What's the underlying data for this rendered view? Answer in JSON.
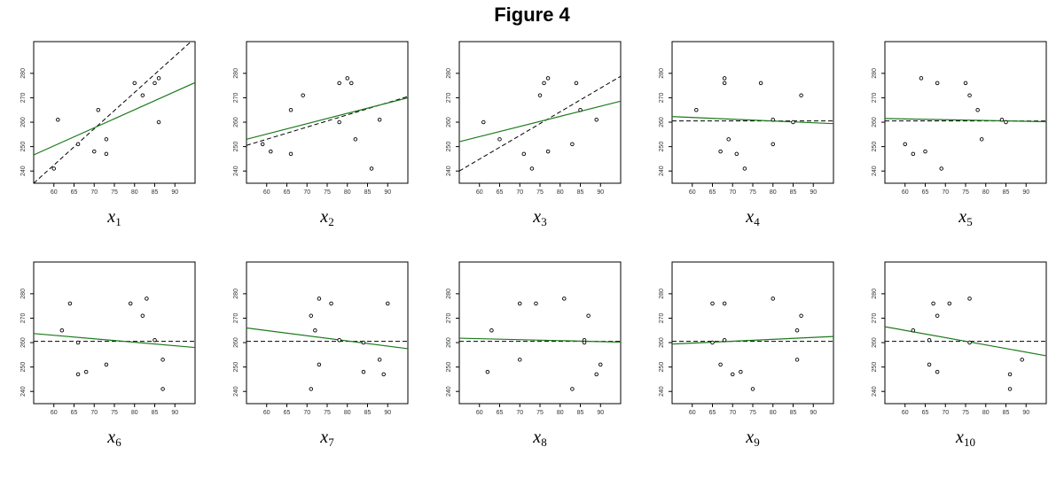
{
  "title": "Figure 4",
  "colors": {
    "fit_line": "#1a7a1a",
    "reference_line": "#000000",
    "points": "#000000"
  },
  "chart_data": [
    {
      "type": "scatter",
      "panel": "x1",
      "xlabel_var": "x",
      "xlabel_sub": "1",
      "xlim": [
        55,
        95
      ],
      "ylim": [
        235,
        293
      ],
      "xticks": [
        60,
        65,
        70,
        75,
        80,
        85,
        90
      ],
      "yticks": [
        240,
        250,
        260,
        270,
        280
      ],
      "points": [
        [
          60,
          241
        ],
        [
          61,
          261
        ],
        [
          66,
          251
        ],
        [
          70,
          248
        ],
        [
          71,
          265
        ],
        [
          73,
          253
        ],
        [
          73,
          247
        ],
        [
          80,
          276
        ],
        [
          82,
          271
        ],
        [
          85,
          276
        ],
        [
          86,
          278
        ],
        [
          86,
          260
        ]
      ],
      "fit_line": [
        [
          55,
          246.6
        ],
        [
          95,
          276.2
        ]
      ],
      "reference_line": [
        [
          55,
          235
        ],
        [
          95,
          294.5
        ]
      ]
    },
    {
      "type": "scatter",
      "panel": "x2",
      "xlabel_var": "x",
      "xlabel_sub": "2",
      "xlim": [
        55,
        95
      ],
      "ylim": [
        235,
        293
      ],
      "xticks": [
        60,
        65,
        70,
        75,
        80,
        85,
        90
      ],
      "yticks": [
        240,
        250,
        260,
        270,
        280
      ],
      "points": [
        [
          59,
          251
        ],
        [
          61,
          248
        ],
        [
          66,
          265
        ],
        [
          66,
          247
        ],
        [
          69,
          271
        ],
        [
          78,
          260
        ],
        [
          78,
          276
        ],
        [
          80,
          278
        ],
        [
          81,
          276
        ],
        [
          82,
          253
        ],
        [
          86,
          241
        ],
        [
          88,
          261
        ]
      ],
      "fit_line": [
        [
          55,
          253
        ],
        [
          95,
          270
        ]
      ],
      "reference_line": [
        [
          55,
          250.5
        ],
        [
          95,
          270.5
        ]
      ]
    },
    {
      "type": "scatter",
      "panel": "x3",
      "xlabel_var": "x",
      "xlabel_sub": "3",
      "xlim": [
        55,
        95
      ],
      "ylim": [
        235,
        293
      ],
      "xticks": [
        60,
        65,
        70,
        75,
        80,
        85,
        90
      ],
      "yticks": [
        240,
        250,
        260,
        270,
        280
      ],
      "points": [
        [
          61,
          260
        ],
        [
          65,
          253
        ],
        [
          71,
          247
        ],
        [
          73,
          241
        ],
        [
          75,
          271
        ],
        [
          76,
          276
        ],
        [
          77,
          278
        ],
        [
          77,
          248
        ],
        [
          83,
          251
        ],
        [
          84,
          276
        ],
        [
          85,
          265
        ],
        [
          89,
          261
        ]
      ],
      "fit_line": [
        [
          55,
          252
        ],
        [
          95,
          268.6
        ]
      ],
      "reference_line": [
        [
          55,
          240
        ],
        [
          95,
          278.8
        ]
      ]
    },
    {
      "type": "scatter",
      "panel": "x4",
      "xlabel_var": "x",
      "xlabel_sub": "4",
      "xlim": [
        55,
        95
      ],
      "ylim": [
        235,
        293
      ],
      "xticks": [
        60,
        65,
        70,
        75,
        80,
        85,
        90
      ],
      "yticks": [
        240,
        250,
        260,
        270,
        280
      ],
      "points": [
        [
          61,
          265
        ],
        [
          67,
          248
        ],
        [
          68,
          278
        ],
        [
          68,
          276
        ],
        [
          69,
          253
        ],
        [
          71,
          247
        ],
        [
          73,
          241
        ],
        [
          77,
          276
        ],
        [
          80,
          261
        ],
        [
          80,
          251
        ],
        [
          85,
          260
        ],
        [
          87,
          271
        ]
      ],
      "fit_line": [
        [
          55,
          262.3
        ],
        [
          95,
          259.4
        ]
      ],
      "reference_line": [
        [
          55,
          260.5
        ],
        [
          95,
          260.5
        ]
      ]
    },
    {
      "type": "scatter",
      "panel": "x5",
      "xlabel_var": "x",
      "xlabel_sub": "5",
      "xlim": [
        55,
        95
      ],
      "ylim": [
        235,
        293
      ],
      "xticks": [
        60,
        65,
        70,
        75,
        80,
        85,
        90
      ],
      "yticks": [
        240,
        250,
        260,
        270,
        280
      ],
      "points": [
        [
          60,
          251
        ],
        [
          62,
          247
        ],
        [
          64,
          278
        ],
        [
          65,
          248
        ],
        [
          68,
          276
        ],
        [
          69,
          241
        ],
        [
          75,
          276
        ],
        [
          76,
          271
        ],
        [
          78,
          265
        ],
        [
          79,
          253
        ],
        [
          84,
          261
        ],
        [
          85,
          260
        ]
      ],
      "fit_line": [
        [
          55,
          261.5
        ],
        [
          95,
          260.2
        ]
      ],
      "reference_line": [
        [
          55,
          260.5
        ],
        [
          95,
          260.5
        ]
      ]
    },
    {
      "type": "scatter",
      "panel": "x6",
      "xlabel_var": "x",
      "xlabel_sub": "6",
      "xlim": [
        55,
        95
      ],
      "ylim": [
        235,
        293
      ],
      "xticks": [
        60,
        65,
        70,
        75,
        80,
        85,
        90
      ],
      "yticks": [
        240,
        250,
        260,
        270,
        280
      ],
      "points": [
        [
          62,
          265
        ],
        [
          64,
          276
        ],
        [
          66,
          260
        ],
        [
          66,
          247
        ],
        [
          68,
          248
        ],
        [
          73,
          251
        ],
        [
          79,
          276
        ],
        [
          82,
          271
        ],
        [
          83,
          278
        ],
        [
          85,
          261
        ],
        [
          87,
          253
        ],
        [
          87,
          241
        ]
      ],
      "fit_line": [
        [
          55,
          263.7
        ],
        [
          95,
          258
        ]
      ],
      "reference_line": [
        [
          55,
          260.5
        ],
        [
          95,
          260.5
        ]
      ]
    },
    {
      "type": "scatter",
      "panel": "x7",
      "xlabel_var": "x",
      "xlabel_sub": "7",
      "xlim": [
        55,
        95
      ],
      "ylim": [
        235,
        293
      ],
      "xticks": [
        60,
        65,
        70,
        75,
        80,
        85,
        90
      ],
      "yticks": [
        240,
        250,
        260,
        270,
        280
      ],
      "points": [
        [
          71,
          271
        ],
        [
          71,
          241
        ],
        [
          72,
          265
        ],
        [
          73,
          278
        ],
        [
          73,
          251
        ],
        [
          76,
          276
        ],
        [
          78,
          261
        ],
        [
          84,
          248
        ],
        [
          84,
          260
        ],
        [
          88,
          253
        ],
        [
          89,
          247
        ],
        [
          90,
          276
        ]
      ],
      "fit_line": [
        [
          55,
          266
        ],
        [
          95,
          257.5
        ]
      ],
      "reference_line": [
        [
          55,
          260.5
        ],
        [
          95,
          260.5
        ]
      ]
    },
    {
      "type": "scatter",
      "panel": "x8",
      "xlabel_var": "x",
      "xlabel_sub": "8",
      "xlim": [
        55,
        95
      ],
      "ylim": [
        235,
        293
      ],
      "xticks": [
        60,
        65,
        70,
        75,
        80,
        85,
        90
      ],
      "yticks": [
        240,
        250,
        260,
        270,
        280
      ],
      "points": [
        [
          62,
          248
        ],
        [
          63,
          265
        ],
        [
          70,
          276
        ],
        [
          70,
          253
        ],
        [
          74,
          276
        ],
        [
          81,
          278
        ],
        [
          83,
          241
        ],
        [
          86,
          261
        ],
        [
          86,
          260
        ],
        [
          87,
          271
        ],
        [
          89,
          247
        ],
        [
          90,
          251
        ]
      ],
      "fit_line": [
        [
          55,
          261.8
        ],
        [
          95,
          260.2
        ]
      ],
      "reference_line": [
        [
          55,
          260.5
        ],
        [
          95,
          260.5
        ]
      ]
    },
    {
      "type": "scatter",
      "panel": "x9",
      "xlabel_var": "x",
      "xlabel_sub": "9",
      "xlim": [
        55,
        95
      ],
      "ylim": [
        235,
        293
      ],
      "xticks": [
        60,
        65,
        70,
        75,
        80,
        85,
        90
      ],
      "yticks": [
        240,
        250,
        260,
        270,
        280
      ],
      "points": [
        [
          65,
          276
        ],
        [
          65,
          260
        ],
        [
          67,
          251
        ],
        [
          68,
          276
        ],
        [
          68,
          261
        ],
        [
          70,
          247
        ],
        [
          72,
          248
        ],
        [
          75,
          241
        ],
        [
          80,
          278
        ],
        [
          86,
          265
        ],
        [
          86,
          253
        ],
        [
          87,
          271
        ]
      ],
      "fit_line": [
        [
          55,
          259.4
        ],
        [
          95,
          262.5
        ]
      ],
      "reference_line": [
        [
          55,
          260.5
        ],
        [
          95,
          260.5
        ]
      ]
    },
    {
      "type": "scatter",
      "panel": "x10",
      "xlabel_var": "x",
      "xlabel_sub": "10",
      "xlim": [
        55,
        95
      ],
      "ylim": [
        235,
        293
      ],
      "xticks": [
        60,
        65,
        70,
        75,
        80,
        85,
        90
      ],
      "yticks": [
        240,
        250,
        260,
        270,
        280
      ],
      "points": [
        [
          62,
          265
        ],
        [
          66,
          261
        ],
        [
          66,
          251
        ],
        [
          67,
          276
        ],
        [
          68,
          271
        ],
        [
          68,
          248
        ],
        [
          71,
          276
        ],
        [
          76,
          278
        ],
        [
          76,
          260
        ],
        [
          86,
          247
        ],
        [
          86,
          241
        ],
        [
          89,
          253
        ]
      ],
      "fit_line": [
        [
          55,
          266.5
        ],
        [
          95,
          254.6
        ]
      ],
      "reference_line": [
        [
          55,
          260.5
        ],
        [
          95,
          260.5
        ]
      ]
    }
  ]
}
